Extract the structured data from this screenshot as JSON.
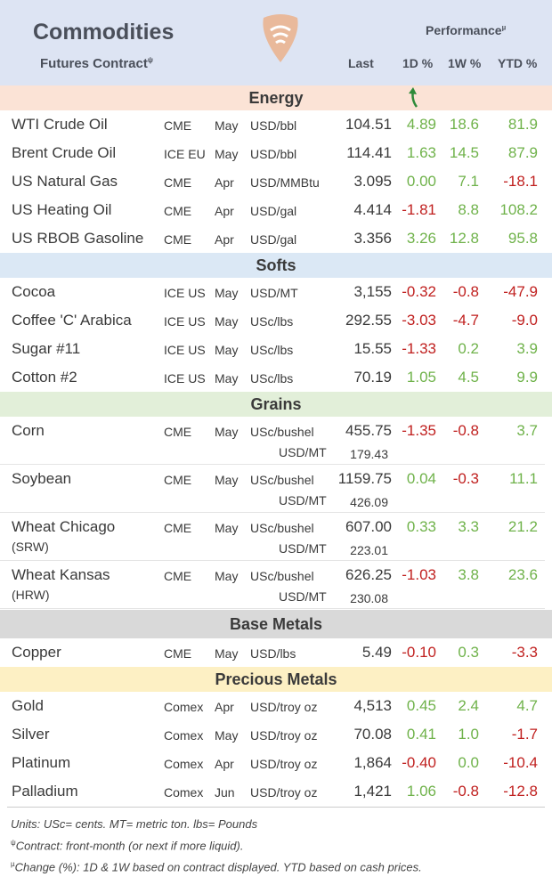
{
  "header": {
    "title": "Commodities",
    "subtitle": "Futures Contract",
    "subtitle_mark": "ψ",
    "performance": "Performance",
    "performance_mark": "µ",
    "col_last": "Last",
    "col_1d": "1D %",
    "col_1w": "1W %",
    "col_ytd": "YTD %"
  },
  "sections": {
    "energy": "Energy",
    "softs": "Softs",
    "grains": "Grains",
    "base_metals": "Base Metals",
    "precious_metals": "Precious Metals"
  },
  "colors": {
    "energy_bg": "#fbe3d6",
    "softs_bg": "#dbe8f5",
    "grains_bg": "#e2efd9",
    "base_metals_bg": "#d9d9d9",
    "precious_bg": "#fdf0c4",
    "positive": "#6fb24a",
    "negative": "#c0201f",
    "logo": "#e9b99b"
  },
  "rows": {
    "energy": [
      {
        "name": "WTI Crude Oil",
        "exchange": "CME",
        "month": "May",
        "unit": "USD/bbl",
        "last": "104.51",
        "d1": "4.89",
        "w1": "18.6",
        "ytd": "81.9"
      },
      {
        "name": "Brent Crude Oil",
        "exchange": "ICE EU",
        "month": "May",
        "unit": "USD/bbl",
        "last": "114.41",
        "d1": "1.63",
        "w1": "14.5",
        "ytd": "87.9"
      },
      {
        "name": "US Natural Gas",
        "exchange": "CME",
        "month": "Apr",
        "unit": "USD/MMBtu",
        "last": "3.095",
        "d1": "0.00",
        "w1": "7.1",
        "ytd": "-18.1"
      },
      {
        "name": "US Heating Oil",
        "exchange": "CME",
        "month": "Apr",
        "unit": "USD/gal",
        "last": "4.414",
        "d1": "-1.81",
        "w1": "8.8",
        "ytd": "108.2"
      },
      {
        "name": "US RBOB Gasoline",
        "exchange": "CME",
        "month": "Apr",
        "unit": "USD/gal",
        "last": "3.356",
        "d1": "3.26",
        "w1": "12.8",
        "ytd": "95.8"
      }
    ],
    "softs": [
      {
        "name": "Cocoa",
        "exchange": "ICE US",
        "month": "May",
        "unit": "USD/MT",
        "last": "3,155",
        "d1": "-0.32",
        "w1": "-0.8",
        "ytd": "-47.9"
      },
      {
        "name": "Coffee 'C' Arabica",
        "exchange": "ICE US",
        "month": "May",
        "unit": "USc/lbs",
        "last": "292.55",
        "d1": "-3.03",
        "w1": "-4.7",
        "ytd": "-9.0"
      },
      {
        "name": "Sugar #11",
        "exchange": "ICE US",
        "month": "May",
        "unit": "USc/lbs",
        "last": "15.55",
        "d1": "-1.33",
        "w1": "0.2",
        "ytd": "3.9"
      },
      {
        "name": "Cotton #2",
        "exchange": "ICE US",
        "month": "May",
        "unit": "USc/lbs",
        "last": "70.19",
        "d1": "1.05",
        "w1": "4.5",
        "ytd": "9.9"
      }
    ],
    "grains": [
      {
        "name": "Corn",
        "sub": "",
        "exchange": "CME",
        "month": "May",
        "unit": "USc/bushel",
        "last": "455.75",
        "unit2": "USD/MT",
        "last2": "179.43",
        "d1": "-1.35",
        "w1": "-0.8",
        "ytd": "3.7"
      },
      {
        "name": "Soybean",
        "sub": "",
        "exchange": "CME",
        "month": "May",
        "unit": "USc/bushel",
        "last": "1159.75",
        "unit2": "USD/MT",
        "last2": "426.09",
        "d1": "0.04",
        "w1": "-0.3",
        "ytd": "11.1"
      },
      {
        "name": "Wheat Chicago",
        "sub": "(SRW)",
        "exchange": "CME",
        "month": "May",
        "unit": "USc/bushel",
        "last": "607.00",
        "unit2": "USD/MT",
        "last2": "223.01",
        "d1": "0.33",
        "w1": "3.3",
        "ytd": "21.2"
      },
      {
        "name": "Wheat Kansas",
        "sub": "(HRW)",
        "exchange": "CME",
        "month": "May",
        "unit": "USc/bushel",
        "last": "626.25",
        "unit2": "USD/MT",
        "last2": "230.08",
        "d1": "-1.03",
        "w1": "3.8",
        "ytd": "23.6"
      }
    ],
    "base_metals": [
      {
        "name": "Copper",
        "exchange": "CME",
        "month": "May",
        "unit": "USD/lbs",
        "last": "5.49",
        "d1": "-0.10",
        "w1": "0.3",
        "ytd": "-3.3"
      }
    ],
    "precious_metals": [
      {
        "name": "Gold",
        "exchange": "Comex",
        "month": "Apr",
        "unit": "USD/troy oz",
        "last": "4,513",
        "d1": "0.45",
        "w1": "2.4",
        "ytd": "4.7"
      },
      {
        "name": "Silver",
        "exchange": "Comex",
        "month": "May",
        "unit": "USD/troy oz",
        "last": "70.08",
        "d1": "0.41",
        "w1": "1.0",
        "ytd": "-1.7"
      },
      {
        "name": "Platinum",
        "exchange": "Comex",
        "month": "Apr",
        "unit": "USD/troy oz",
        "last": "1,864",
        "d1": "-0.40",
        "w1": "0.0",
        "ytd": "-10.4"
      },
      {
        "name": "Palladium",
        "exchange": "Comex",
        "month": "Jun",
        "unit": "USD/troy oz",
        "last": "1,421",
        "d1": "1.06",
        "w1": "-0.8",
        "ytd": "-12.8"
      }
    ]
  },
  "footer": {
    "units": "Units: USc= cents.   MT= metric ton.   lbs= Pounds",
    "contract_mark": "ψ",
    "contract": "Contract: front-month (or next if more liquid).",
    "change_mark": "µ",
    "change": "Change (%): 1D & 1W based on contract displayed. YTD based on cash prices."
  }
}
